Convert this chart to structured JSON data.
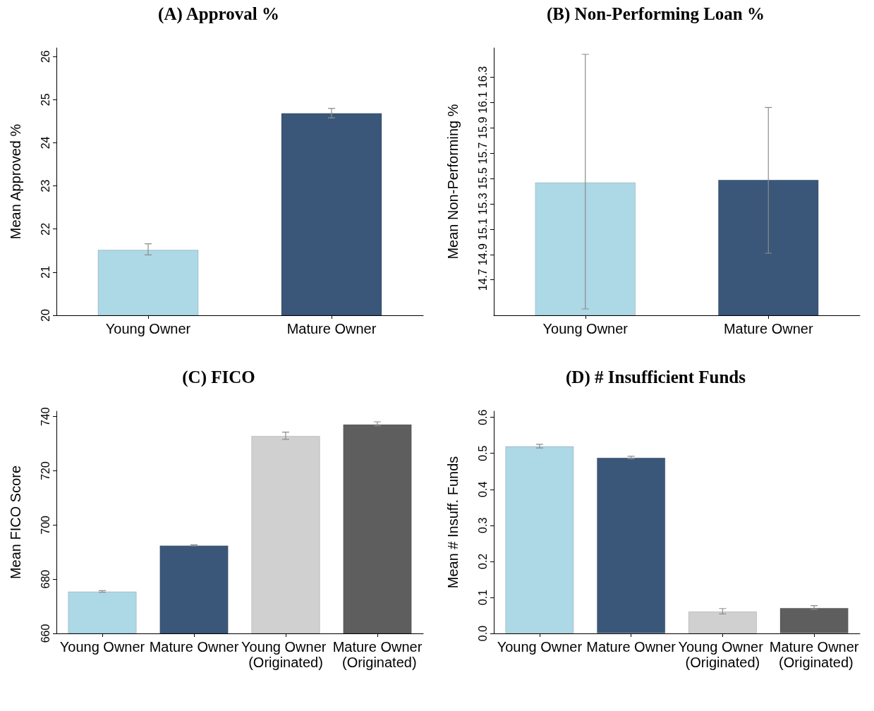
{
  "chart_data": [
    {
      "type": "bar",
      "title": "(A) Approval %",
      "ylabel": "Mean Approved %",
      "categories": [
        "Young Owner",
        "Mature Owner"
      ],
      "values": [
        21.52,
        24.69
      ],
      "colors": [
        "#add8e6",
        "#3a5779"
      ],
      "errors": [
        [
          21.4,
          21.66
        ],
        [
          24.58,
          24.8
        ]
      ],
      "ylim": [
        20,
        26.2
      ],
      "yticks": [
        20,
        21,
        22,
        23,
        24,
        25,
        26
      ],
      "grid": false
    },
    {
      "type": "bar",
      "title": "(B) Non-Performing Loan %",
      "ylabel": "Mean Non-Performing %",
      "categories": [
        "Young Owner",
        "Mature Owner"
      ],
      "values": [
        15.47,
        15.49
      ],
      "colors": [
        "#add8e6",
        "#3a5779"
      ],
      "errors": [
        [
          14.47,
          16.48
        ],
        [
          14.91,
          16.06
        ]
      ],
      "ylim": [
        14.42,
        16.53
      ],
      "yticks": [
        14.7,
        14.9,
        15.1,
        15.3,
        15.5,
        15.7,
        15.9,
        16.1,
        16.3
      ],
      "grid": false
    },
    {
      "type": "bar",
      "title": "(C) FICO",
      "ylabel": "Mean FICO Score",
      "categories": [
        "Young Owner",
        "Mature Owner",
        "Young Owner (Originated)",
        "Mature Owner (Originated)"
      ],
      "values": [
        675.5,
        692.5,
        732.9,
        737.2
      ],
      "colors": [
        "#add8e6",
        "#3a5779",
        "#d0d0d0",
        "#5e5e5e"
      ],
      "errors": [
        [
          675.2,
          675.8
        ],
        [
          692.3,
          692.7
        ],
        [
          731.6,
          734.3
        ],
        [
          736.6,
          738.1
        ]
      ],
      "ylim": [
        660,
        742
      ],
      "yticks": [
        660,
        680,
        700,
        720,
        740
      ],
      "grid": false
    },
    {
      "type": "bar",
      "title": "(D) # Insufficient Funds",
      "ylabel": "Mean # Insuff. Funds",
      "categories": [
        "Young Owner",
        "Mature Owner",
        "Young Owner (Originated)",
        "Mature Owner (Originated)"
      ],
      "values": [
        0.52,
        0.488,
        0.061,
        0.071
      ],
      "colors": [
        "#add8e6",
        "#3a5779",
        "#d0d0d0",
        "#5e5e5e"
      ],
      "errors": [
        [
          0.515,
          0.525
        ],
        [
          0.485,
          0.492
        ],
        [
          0.054,
          0.069
        ],
        [
          0.067,
          0.077
        ]
      ],
      "ylim": [
        0,
        0.617
      ],
      "yticks": [
        {
          "value": 0,
          "label": "0.0"
        },
        {
          "value": 0.1,
          "label": "0.1"
        },
        {
          "value": 0.2,
          "label": "0.2"
        },
        {
          "value": 0.3,
          "label": "0.3"
        },
        {
          "value": 0.4,
          "label": "0.4"
        },
        {
          "value": 0.5,
          "label": "0.5"
        },
        {
          "value": 0.6,
          "label": "0.6"
        }
      ],
      "grid": false
    }
  ]
}
